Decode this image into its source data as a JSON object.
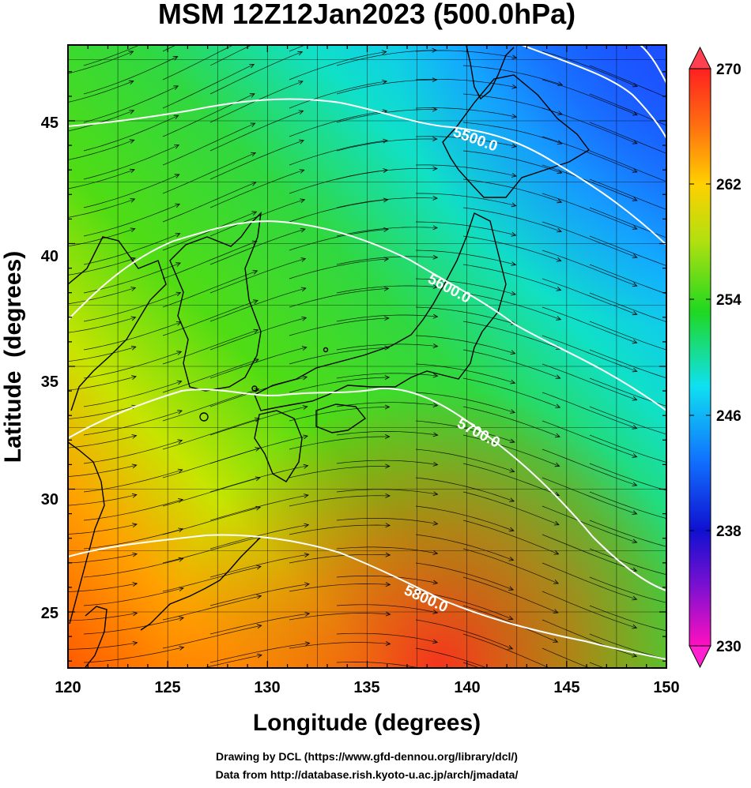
{
  "title": "MSM 12Z12Jan2023 (500.0hPa)",
  "axes": {
    "xlabel": "Longitude (degrees)",
    "ylabel": "Latitude  (degrees)",
    "xticks": [
      "120",
      "125",
      "130",
      "135",
      "140",
      "145",
      "150"
    ],
    "yticks": [
      "25",
      "30",
      "35",
      "40",
      "45"
    ]
  },
  "colorbar": {
    "ticks": [
      "230",
      "238",
      "246",
      "254",
      "262",
      "270"
    ],
    "min": 230,
    "max": 270
  },
  "contours": [
    {
      "label": "5500.0"
    },
    {
      "label": "5600.0"
    },
    {
      "label": "5700.0"
    },
    {
      "label": "5800.0"
    }
  ],
  "credits": {
    "line1": "Drawing by DCL (https://www.gfd-dennou.org/library/dcl/)",
    "line2": "Data from http://database.rish.kyoto-u.ac.jp/arch/jmadata/"
  },
  "colors": {
    "field_warm": "#ff3000",
    "field_mid": "#30d820",
    "field_cold": "#1060ff",
    "contour": "#ffffff",
    "coastline": "#000000"
  }
}
